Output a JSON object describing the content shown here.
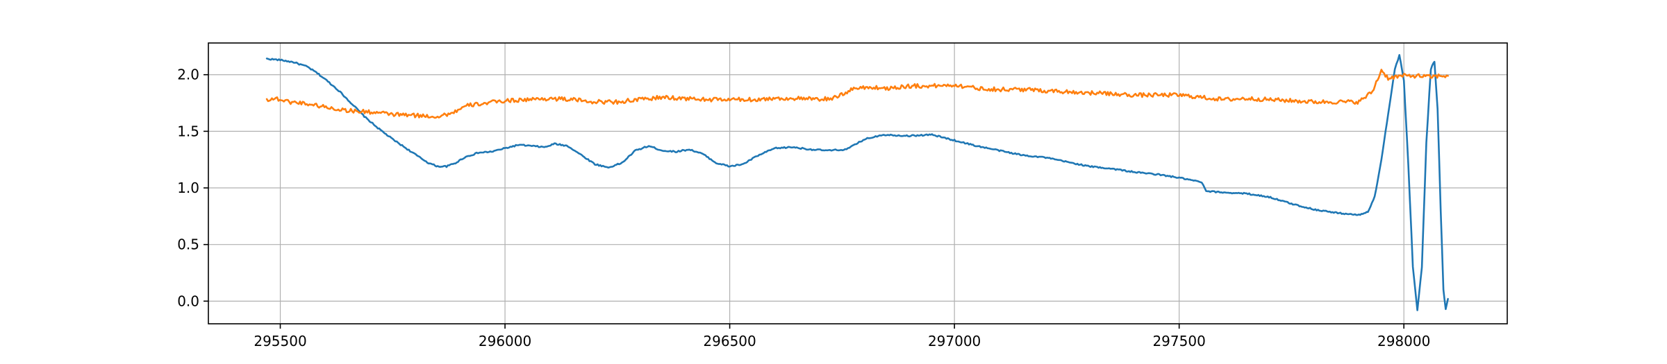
{
  "chart_data": {
    "type": "line",
    "title": "",
    "xlabel": "",
    "ylabel": "",
    "xlim": [
      295340,
      298230
    ],
    "ylim": [
      -0.2,
      2.28
    ],
    "grid": true,
    "legend": "none",
    "x_ticks": [
      {
        "value": 295500,
        "label": "295500"
      },
      {
        "value": 296000,
        "label": "296000"
      },
      {
        "value": 296500,
        "label": "296500"
      },
      {
        "value": 297000,
        "label": "297000"
      },
      {
        "value": 297500,
        "label": "297500"
      },
      {
        "value": 298000,
        "label": "298000"
      }
    ],
    "y_ticks": [
      {
        "value": 0.0,
        "label": "0.0"
      },
      {
        "value": 0.5,
        "label": "0.5"
      },
      {
        "value": 1.0,
        "label": "1.0"
      },
      {
        "value": 1.5,
        "label": "1.5"
      },
      {
        "value": 2.0,
        "label": "2.0"
      }
    ],
    "series": [
      {
        "color": "#1f77b4",
        "points": [
          [
            295470,
            2.14
          ],
          [
            295500,
            2.13
          ],
          [
            295530,
            2.11
          ],
          [
            295560,
            2.07
          ],
          [
            295580,
            2.02
          ],
          [
            295600,
            1.96
          ],
          [
            295630,
            1.86
          ],
          [
            295660,
            1.74
          ],
          [
            295690,
            1.62
          ],
          [
            295720,
            1.52
          ],
          [
            295750,
            1.43
          ],
          [
            295780,
            1.35
          ],
          [
            295810,
            1.27
          ],
          [
            295830,
            1.22
          ],
          [
            295850,
            1.19
          ],
          [
            295870,
            1.19
          ],
          [
            295890,
            1.22
          ],
          [
            295910,
            1.27
          ],
          [
            295940,
            1.31
          ],
          [
            295970,
            1.32
          ],
          [
            296000,
            1.35
          ],
          [
            296030,
            1.38
          ],
          [
            296060,
            1.37
          ],
          [
            296090,
            1.36
          ],
          [
            296110,
            1.39
          ],
          [
            296140,
            1.37
          ],
          [
            296170,
            1.29
          ],
          [
            296200,
            1.21
          ],
          [
            296230,
            1.18
          ],
          [
            296260,
            1.22
          ],
          [
            296290,
            1.33
          ],
          [
            296320,
            1.37
          ],
          [
            296350,
            1.33
          ],
          [
            296380,
            1.32
          ],
          [
            296410,
            1.34
          ],
          [
            296440,
            1.3
          ],
          [
            296470,
            1.22
          ],
          [
            296500,
            1.19
          ],
          [
            296530,
            1.21
          ],
          [
            296560,
            1.28
          ],
          [
            296600,
            1.35
          ],
          [
            296640,
            1.36
          ],
          [
            296680,
            1.34
          ],
          [
            296720,
            1.33
          ],
          [
            296760,
            1.34
          ],
          [
            296800,
            1.43
          ],
          [
            296840,
            1.47
          ],
          [
            296900,
            1.46
          ],
          [
            296950,
            1.47
          ],
          [
            297000,
            1.42
          ],
          [
            297050,
            1.37
          ],
          [
            297100,
            1.33
          ],
          [
            297150,
            1.29
          ],
          [
            297200,
            1.27
          ],
          [
            297250,
            1.23
          ],
          [
            297300,
            1.19
          ],
          [
            297350,
            1.17
          ],
          [
            297400,
            1.14
          ],
          [
            297450,
            1.12
          ],
          [
            297500,
            1.09
          ],
          [
            297550,
            1.05
          ],
          [
            297560,
            0.97
          ],
          [
            297600,
            0.96
          ],
          [
            297650,
            0.95
          ],
          [
            297700,
            0.92
          ],
          [
            297750,
            0.86
          ],
          [
            297800,
            0.81
          ],
          [
            297850,
            0.78
          ],
          [
            297900,
            0.76
          ],
          [
            297920,
            0.79
          ],
          [
            297935,
            0.92
          ],
          [
            297950,
            1.25
          ],
          [
            297965,
            1.65
          ],
          [
            297980,
            2.05
          ],
          [
            297990,
            2.17
          ],
          [
            298000,
            1.95
          ],
          [
            298010,
            1.2
          ],
          [
            298020,
            0.3
          ],
          [
            298030,
            -0.08
          ],
          [
            298040,
            0.3
          ],
          [
            298050,
            1.4
          ],
          [
            298060,
            2.05
          ],
          [
            298068,
            2.12
          ],
          [
            298075,
            1.7
          ],
          [
            298082,
            0.8
          ],
          [
            298088,
            0.1
          ],
          [
            298093,
            -0.07
          ],
          [
            298098,
            0.02
          ]
        ]
      },
      {
        "color": "#ff7f0e",
        "points": [
          [
            295470,
            1.78
          ],
          [
            295490,
            1.79
          ],
          [
            295520,
            1.76
          ],
          [
            295550,
            1.75
          ],
          [
            295580,
            1.73
          ],
          [
            295620,
            1.7
          ],
          [
            295660,
            1.68
          ],
          [
            295700,
            1.67
          ],
          [
            295750,
            1.65
          ],
          [
            295800,
            1.64
          ],
          [
            295850,
            1.63
          ],
          [
            295880,
            1.66
          ],
          [
            295920,
            1.73
          ],
          [
            295960,
            1.75
          ],
          [
            296000,
            1.77
          ],
          [
            296050,
            1.78
          ],
          [
            296100,
            1.79
          ],
          [
            296150,
            1.78
          ],
          [
            296200,
            1.76
          ],
          [
            296250,
            1.76
          ],
          [
            296300,
            1.78
          ],
          [
            296350,
            1.8
          ],
          [
            296400,
            1.79
          ],
          [
            296450,
            1.78
          ],
          [
            296500,
            1.78
          ],
          [
            296550,
            1.78
          ],
          [
            296600,
            1.79
          ],
          [
            296650,
            1.79
          ],
          [
            296700,
            1.78
          ],
          [
            296740,
            1.8
          ],
          [
            296770,
            1.87
          ],
          [
            296800,
            1.89
          ],
          [
            296850,
            1.88
          ],
          [
            296900,
            1.9
          ],
          [
            296950,
            1.9
          ],
          [
            297000,
            1.91
          ],
          [
            297050,
            1.88
          ],
          [
            297100,
            1.87
          ],
          [
            297150,
            1.87
          ],
          [
            297200,
            1.86
          ],
          [
            297250,
            1.85
          ],
          [
            297300,
            1.84
          ],
          [
            297350,
            1.83
          ],
          [
            297400,
            1.82
          ],
          [
            297450,
            1.82
          ],
          [
            297500,
            1.82
          ],
          [
            297550,
            1.8
          ],
          [
            297600,
            1.78
          ],
          [
            297650,
            1.79
          ],
          [
            297700,
            1.78
          ],
          [
            297750,
            1.77
          ],
          [
            297800,
            1.76
          ],
          [
            297850,
            1.76
          ],
          [
            297900,
            1.76
          ],
          [
            297930,
            1.85
          ],
          [
            297950,
            2.04
          ],
          [
            297965,
            1.97
          ],
          [
            297980,
            1.98
          ],
          [
            298000,
            1.99
          ],
          [
            298030,
            1.99
          ],
          [
            298060,
            1.98
          ],
          [
            298080,
            1.99
          ],
          [
            298098,
            1.99
          ]
        ]
      }
    ]
  }
}
